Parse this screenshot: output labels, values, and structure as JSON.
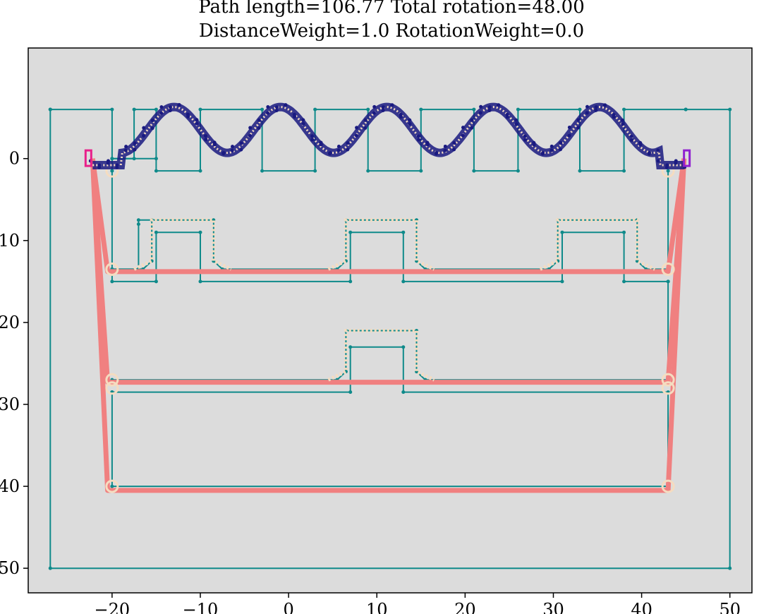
{
  "chart_data": {
    "type": "line",
    "title": [
      "Path length=106.77 Total rotation=48.00",
      "DistanceWeight=1.0 RotationWeight=0.0"
    ],
    "xlabel": "",
    "ylabel": "",
    "xlim": [
      -29.5,
      52.5
    ],
    "ylim": [
      53.0,
      -13.5
    ],
    "x_ticks": [
      -20,
      -10,
      0,
      10,
      20,
      30,
      40,
      50
    ],
    "x_tick_labels": [
      "−20",
      "−10",
      "0",
      "10",
      "20",
      "30",
      "40",
      "50"
    ],
    "y_ticks": [
      0,
      10,
      20,
      30,
      40,
      50
    ],
    "y_tick_labels": [
      "0",
      "10",
      "20",
      "30",
      "40",
      "50"
    ],
    "grid": false,
    "colors": {
      "background": "#dcdcdc",
      "wall": "#0f8a8a",
      "path": "#f08080",
      "pose": "#f5dcc0",
      "samples": "#1a1a80",
      "start": "#e8208a",
      "goal": "#9020d0"
    },
    "environment": {
      "outer_frame": [
        [
          -27,
          -6
        ],
        [
          -20,
          -6
        ],
        [
          -20,
          0
        ],
        [
          -17.5,
          0
        ],
        [
          -17.5,
          -6
        ],
        [
          -15,
          -6
        ],
        [
          -15,
          1.5
        ],
        [
          -10,
          1.5
        ],
        [
          -10,
          -6
        ],
        [
          -3,
          -6
        ],
        [
          -3,
          1.5
        ],
        [
          3,
          1.5
        ],
        [
          3,
          -6
        ],
        [
          9,
          -6
        ],
        [
          9,
          1.5
        ],
        [
          15,
          1.5
        ],
        [
          15,
          -6
        ],
        [
          21,
          -6
        ],
        [
          21,
          1.5
        ],
        [
          26,
          1.5
        ],
        [
          26,
          -6
        ],
        [
          33,
          -6
        ],
        [
          33,
          1.5
        ],
        [
          38,
          1.5
        ],
        [
          38,
          -6
        ],
        [
          45,
          -6
        ],
        [
          45,
          -6
        ],
        [
          50,
          -6
        ],
        [
          50,
          50
        ],
        [
          -27,
          50
        ],
        [
          -27,
          -6
        ]
      ],
      "inner_top": [
        [
          -20,
          1.5
        ],
        [
          -20,
          0
        ],
        [
          -15,
          0
        ]
      ],
      "middle_boundary": [
        [
          -20,
          13.5
        ],
        [
          -20,
          15
        ],
        [
          -15,
          15
        ],
        [
          -15,
          9
        ],
        [
          -10,
          9
        ],
        [
          -10,
          15
        ],
        [
          7,
          15
        ],
        [
          7,
          9
        ],
        [
          13,
          9
        ],
        [
          13,
          15
        ],
        [
          31,
          15
        ],
        [
          31,
          9
        ],
        [
          38,
          9
        ],
        [
          38,
          15
        ],
        [
          43,
          15
        ]
      ],
      "upper_corridor": [
        [
          -20,
          1.5
        ],
        [
          -20,
          13.5
        ],
        [
          -17,
          13.5
        ],
        [
          -17,
          8
        ],
        [
          -17,
          7.5
        ],
        [
          -15.5,
          7.5
        ],
        [
          -15.5,
          7.5
        ],
        [
          -15.5,
          7.5
        ]
      ],
      "corridor_top_row": [
        [
          -20,
          13.5
        ],
        [
          -16.5,
          13.5
        ],
        [
          -15.5,
          12.5
        ],
        [
          -15.5,
          7.5
        ],
        [
          -8.5,
          7.5
        ],
        [
          -8.5,
          12.5
        ],
        [
          -7.5,
          13.5
        ],
        [
          5.5,
          13.5
        ],
        [
          6.5,
          12.5
        ],
        [
          6.5,
          7.5
        ],
        [
          14.5,
          7.5
        ],
        [
          14.5,
          12.5
        ],
        [
          15.5,
          13.5
        ],
        [
          29.5,
          13.5
        ],
        [
          30.5,
          12.5
        ],
        [
          30.5,
          7.5
        ],
        [
          39.5,
          7.5
        ],
        [
          39.5,
          12.5
        ],
        [
          40.5,
          13.5
        ],
        [
          43,
          13.5
        ]
      ],
      "corridor_mid_row": [
        [
          -20,
          27
        ],
        [
          5.5,
          27
        ],
        [
          6.5,
          26
        ],
        [
          6.5,
          21
        ],
        [
          14.5,
          21
        ],
        [
          14.5,
          26
        ],
        [
          15.5,
          27
        ],
        [
          43,
          27
        ]
      ],
      "corridor_mid_lower": [
        [
          -20,
          28.5
        ],
        [
          -20,
          40
        ],
        [
          43,
          40
        ],
        [
          43,
          28.5
        ],
        [
          13,
          28.5
        ],
        [
          13,
          23
        ],
        [
          7,
          23
        ],
        [
          7,
          28.5
        ],
        [
          -20,
          28.5
        ]
      ],
      "right_inner": [
        [
          43,
          1.5
        ],
        [
          43,
          13.5
        ]
      ],
      "right_inner_2": [
        [
          43,
          15
        ],
        [
          43,
          27
        ]
      ]
    },
    "path_length": 106.77,
    "total_rotation": 48.0,
    "distance_weight": 1.0,
    "rotation_weight": 0.0
  }
}
